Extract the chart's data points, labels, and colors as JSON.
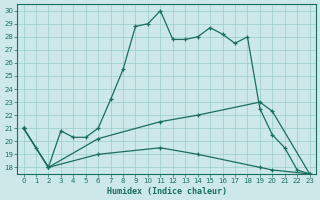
{
  "xlabel": "Humidex (Indice chaleur)",
  "xlim": [
    -0.5,
    23.5
  ],
  "ylim": [
    17.5,
    30.5
  ],
  "xticks": [
    0,
    1,
    2,
    3,
    4,
    5,
    6,
    7,
    8,
    9,
    10,
    11,
    12,
    13,
    14,
    15,
    16,
    17,
    18,
    19,
    20,
    21,
    22,
    23
  ],
  "yticks": [
    18,
    19,
    20,
    21,
    22,
    23,
    24,
    25,
    26,
    27,
    28,
    29,
    30
  ],
  "bg_color": "#cce8e8",
  "line_color": "#1a6e60",
  "grid_color": "#99cccc",
  "curve1_x": [
    0,
    1,
    2,
    3,
    4,
    5,
    6,
    7,
    8,
    9,
    10,
    11,
    12,
    13,
    14,
    15,
    16,
    17,
    18,
    19,
    20,
    21,
    22,
    23
  ],
  "curve1_y": [
    21.0,
    19.5,
    18.0,
    20.8,
    20.3,
    20.3,
    21.0,
    23.2,
    25.5,
    28.8,
    29.0,
    30.0,
    27.8,
    27.8,
    28.0,
    28.7,
    28.2,
    27.5,
    28.0,
    22.5,
    20.5,
    19.5,
    17.8,
    17.5
  ],
  "curve2_x": [
    0,
    2,
    6,
    11,
    14,
    19,
    20,
    23
  ],
  "curve2_y": [
    21.0,
    18.0,
    20.2,
    21.5,
    22.0,
    23.0,
    22.3,
    17.5
  ],
  "curve3_x": [
    0,
    2,
    6,
    11,
    14,
    19,
    20,
    23
  ],
  "curve3_y": [
    21.0,
    18.0,
    19.0,
    19.5,
    19.0,
    18.0,
    17.8,
    17.5
  ]
}
